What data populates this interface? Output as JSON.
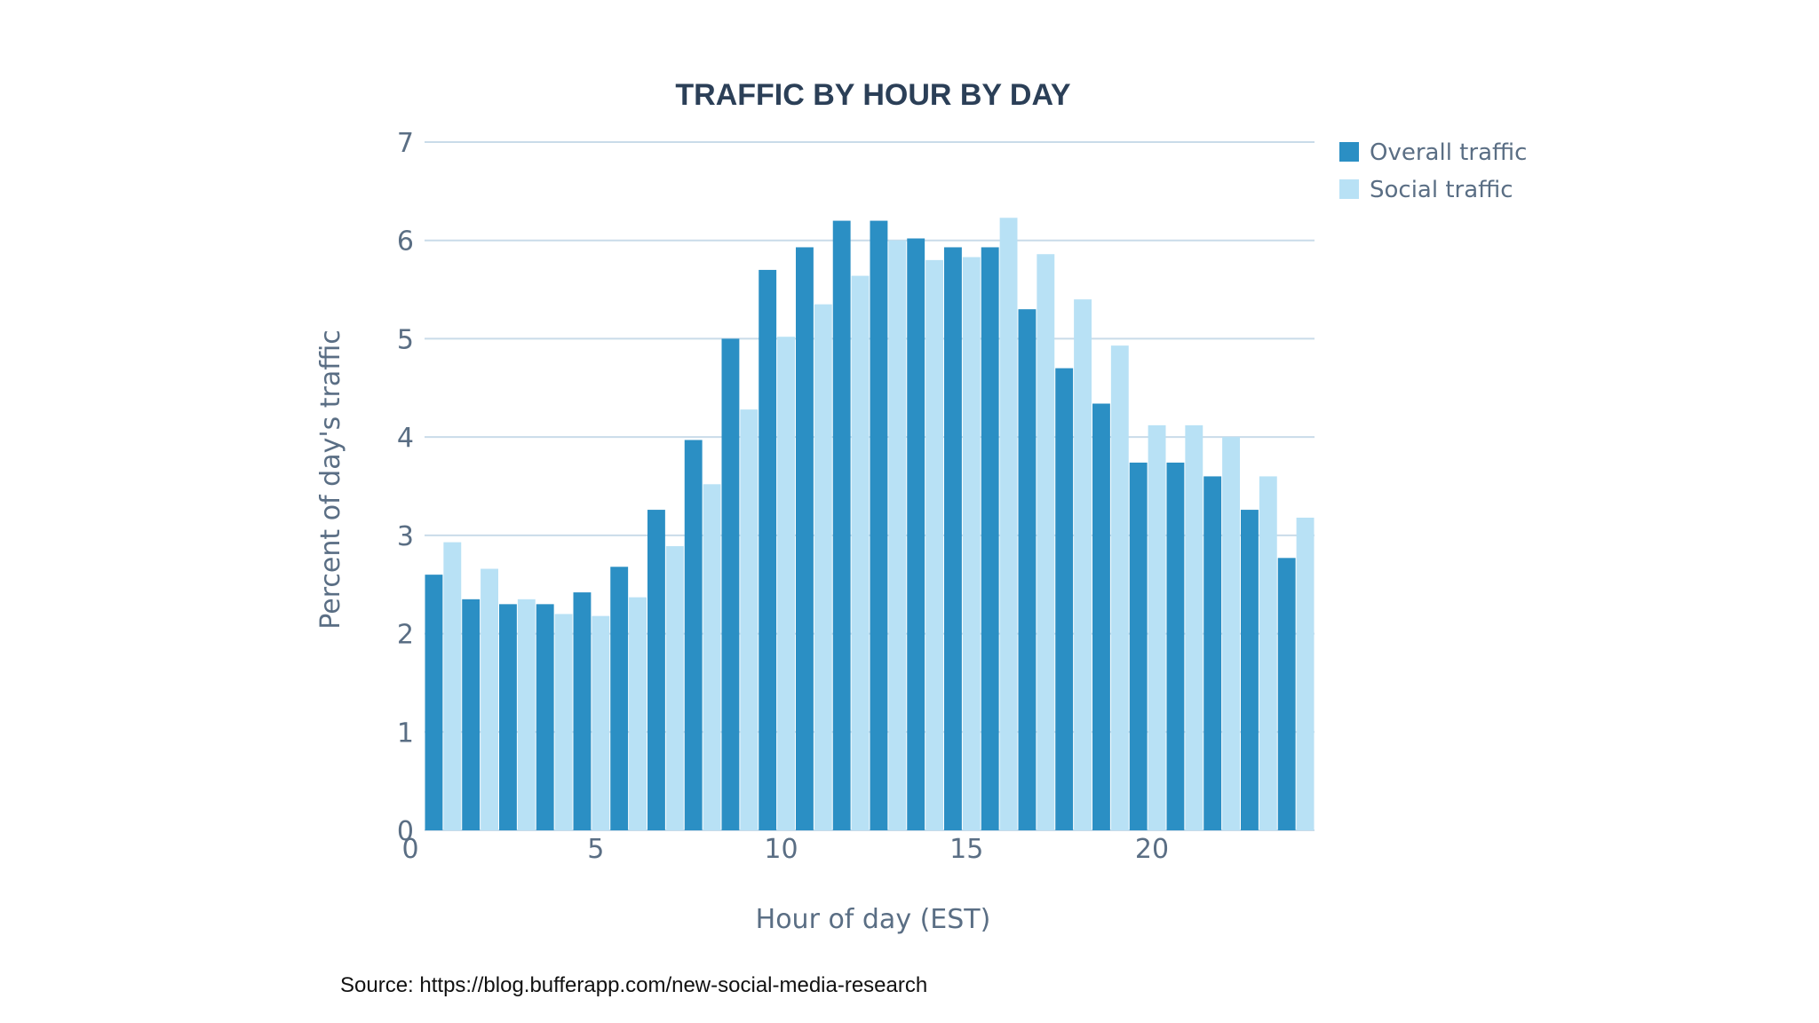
{
  "chart_data": {
    "type": "bar",
    "title": "TRAFFIC BY HOUR BY DAY",
    "xlabel": "Hour of day (EST)",
    "ylabel": "Percent of day's traffic",
    "ylim": [
      0,
      7
    ],
    "yticks": [
      0,
      1,
      2,
      3,
      4,
      5,
      6,
      7
    ],
    "xticks": [
      0,
      5,
      10,
      15,
      20
    ],
    "grid": true,
    "legend_position": "top-right",
    "categories": [
      0,
      1,
      2,
      3,
      4,
      5,
      6,
      7,
      8,
      9,
      10,
      11,
      12,
      13,
      14,
      15,
      16,
      17,
      18,
      19,
      20,
      21,
      22,
      23
    ],
    "series": [
      {
        "name": "Overall traffic",
        "color": "#2b8fc4",
        "values": [
          2.6,
          2.35,
          2.3,
          2.3,
          2.42,
          2.68,
          3.26,
          3.97,
          5.0,
          5.7,
          5.93,
          6.2,
          6.2,
          6.02,
          5.93,
          5.93,
          5.3,
          4.7,
          4.34,
          3.74,
          3.74,
          3.6,
          3.26,
          2.77
        ]
      },
      {
        "name": "Social traffic",
        "color": "#b8e1f5",
        "values": [
          2.93,
          2.66,
          2.35,
          2.2,
          2.18,
          2.37,
          2.89,
          3.52,
          4.28,
          5.02,
          5.35,
          5.64,
          6.0,
          5.8,
          5.83,
          6.23,
          5.86,
          5.4,
          4.93,
          4.12,
          4.12,
          4.0,
          3.6,
          3.18
        ]
      }
    ]
  },
  "source": {
    "text": "Source: https://blog.bufferapp.com/new-social-media-research"
  },
  "colors": {
    "grid": "#c9dbe9",
    "text": "#5a6e84",
    "title": "#2b3f57"
  }
}
